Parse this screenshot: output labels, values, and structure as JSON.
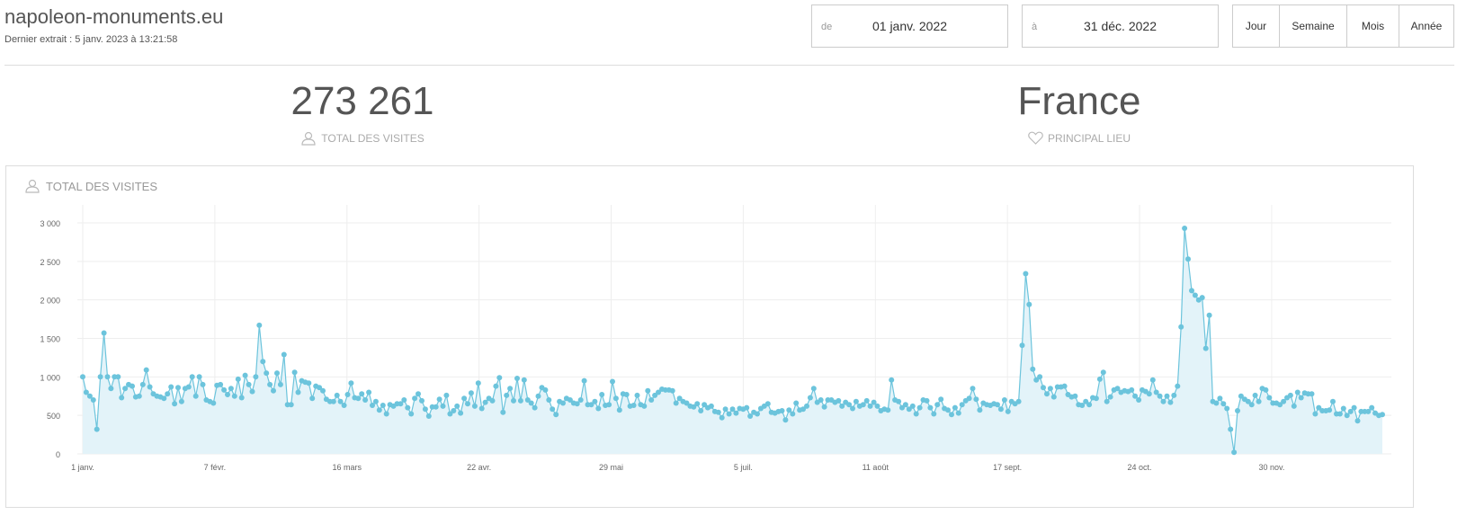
{
  "header": {
    "site_title": "napoleon-monuments.eu",
    "last_extract": "Dernier extrait : 5 janv. 2023 à 13:21:58"
  },
  "date_range": {
    "from_prefix": "de",
    "from_value": "01 janv. 2022",
    "to_prefix": "à",
    "to_value": "31 déc. 2022"
  },
  "period_buttons": [
    "Jour",
    "Semaine",
    "Mois",
    "Année"
  ],
  "stats": {
    "visits_value": "273 261",
    "visits_label": "TOTAL DES VISITES",
    "location_value": "France",
    "location_label": "PRINCIPAL LIEU"
  },
  "icons": {
    "visits": "user-icon",
    "location": "heart-icon"
  },
  "colors": {
    "line": "#6cc4dc",
    "fill": "#e3f3f9",
    "grid": "#eeeeee"
  },
  "panel": {
    "title": "TOTAL DES VISITES"
  },
  "chart_data": {
    "type": "area",
    "title": "TOTAL DES VISITES",
    "xlabel": "",
    "ylabel": "",
    "ylim": [
      0,
      3000
    ],
    "y_ticks": [
      0,
      500,
      1000,
      1500,
      2000,
      2500,
      3000
    ],
    "y_tick_labels": [
      "0",
      "500",
      "1 000",
      "1 500",
      "2 000",
      "2 500",
      "3 000"
    ],
    "x_start": "2022-01-01",
    "x_end": "2022-12-31",
    "x_tick_dates": [
      "2022-01-01",
      "2022-02-07",
      "2022-03-16",
      "2022-04-22",
      "2022-05-29",
      "2022-07-05",
      "2022-08-11",
      "2022-09-17",
      "2022-10-24",
      "2022-11-30"
    ],
    "x_tick_labels": [
      "1 janv.",
      "7 févr.",
      "16 mars",
      "22 avr.",
      "29 mai",
      "5 juil.",
      "11 août",
      "17 sept.",
      "24 oct.",
      "30 nov."
    ],
    "grid": true,
    "legend": "none",
    "series": [
      {
        "values": [
          1000,
          800,
          750,
          700,
          320,
          1000,
          1570,
          1000,
          850,
          1000,
          1000,
          730,
          850,
          900,
          880,
          740,
          750,
          900,
          1090,
          870,
          780,
          750,
          740,
          720,
          780,
          870,
          650,
          860,
          680,
          850,
          870,
          1000,
          750,
          1000,
          900,
          700,
          680,
          660,
          890,
          900,
          830,
          770,
          850,
          750,
          970,
          730,
          1020,
          900,
          810,
          1000,
          1670,
          1200,
          1050,
          900,
          820,
          1050,
          900,
          1290,
          640,
          640,
          1060,
          800,
          950,
          930,
          920,
          720,
          880,
          860,
          820,
          710,
          680,
          680,
          760,
          680,
          630,
          770,
          920,
          730,
          720,
          780,
          700,
          800,
          630,
          680,
          570,
          630,
          520,
          640,
          620,
          650,
          650,
          700,
          600,
          520,
          720,
          780,
          690,
          580,
          490,
          610,
          610,
          710,
          620,
          760,
          520,
          560,
          620,
          530,
          720,
          650,
          790,
          620,
          920,
          590,
          670,
          720,
          690,
          880,
          990,
          540,
          760,
          850,
          690,
          980,
          690,
          960,
          700,
          660,
          600,
          750,
          860,
          830,
          700,
          580,
          510,
          680,
          660,
          720,
          700,
          660,
          650,
          700,
          950,
          640,
          640,
          680,
          590,
          770,
          630,
          640,
          940,
          720,
          570,
          780,
          770,
          620,
          630,
          760,
          640,
          620,
          820,
          700,
          760,
          800,
          840,
          830,
          830,
          820,
          660,
          720,
          680,
          660,
          620,
          610,
          650,
          560,
          640,
          600,
          620,
          550,
          540,
          470,
          580,
          520,
          580,
          530,
          590,
          580,
          600,
          490,
          540,
          520,
          590,
          620,
          650,
          540,
          530,
          550,
          560,
          440,
          570,
          520,
          660,
          570,
          580,
          620,
          730,
          850,
          670,
          700,
          610,
          700,
          700,
          670,
          690,
          620,
          670,
          640,
          590,
          680,
          620,
          640,
          690,
          620,
          670,
          620,
          560,
          580,
          570,
          960,
          700,
          680,
          600,
          640,
          580,
          620,
          520,
          600,
          700,
          690,
          600,
          520,
          640,
          710,
          590,
          570,
          510,
          600,
          530,
          640,
          690,
          720,
          850,
          710,
          570,
          660,
          640,
          630,
          650,
          640,
          580,
          700,
          550,
          680,
          650,
          680,
          1410,
          2340,
          1940,
          1100,
          960,
          1000,
          860,
          780,
          850,
          740,
          870,
          870,
          880,
          770,
          740,
          750,
          640,
          630,
          680,
          640,
          730,
          720,
          970,
          1060,
          680,
          740,
          830,
          850,
          800,
          820,
          810,
          830,
          750,
          700,
          830,
          810,
          780,
          960,
          800,
          750,
          680,
          750,
          670,
          760,
          880,
          1650,
          2930,
          2530,
          2120,
          2060,
          2000,
          2030,
          1370,
          1800,
          680,
          660,
          720,
          650,
          590,
          320,
          20,
          560,
          750,
          710,
          680,
          640,
          760,
          680,
          850,
          830,
          730,
          660,
          660,
          640,
          680,
          730,
          760,
          620,
          800,
          730,
          790,
          780,
          780,
          520,
          600,
          560,
          560,
          570,
          680,
          520,
          520,
          590,
          500,
          550,
          600,
          430,
          550,
          550,
          550,
          600,
          530,
          500,
          510
        ]
      }
    ]
  }
}
